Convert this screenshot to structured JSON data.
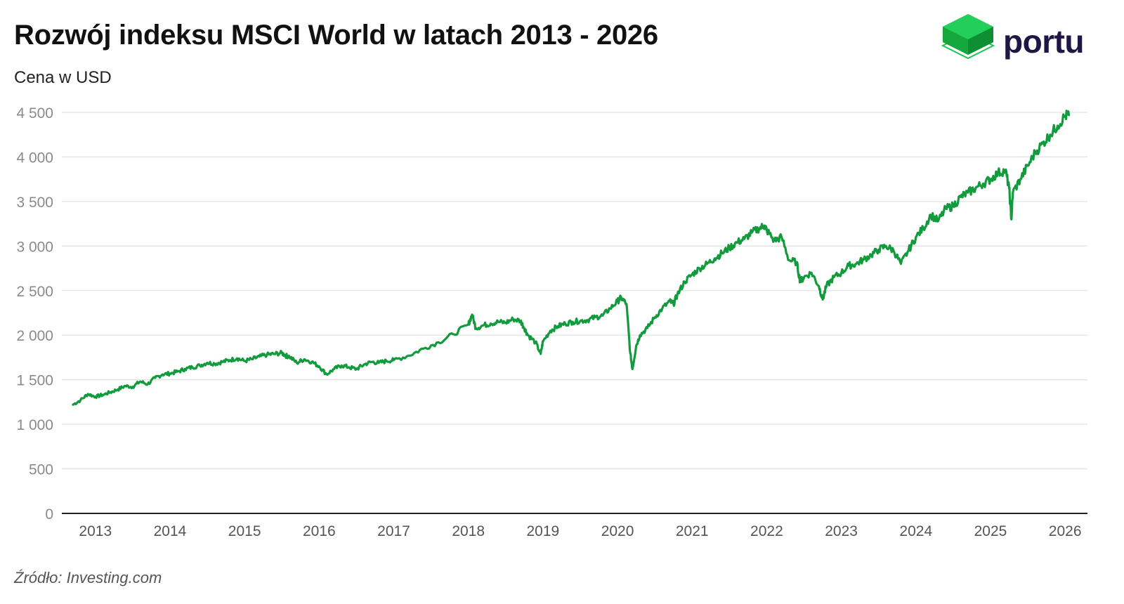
{
  "header": {
    "title": "Rozwój indeksu MSCI World w latach 2013 - 2026",
    "subtitle": "Cena w USD"
  },
  "brand": {
    "name": "portu"
  },
  "footer": {
    "source": "Źródło: Investing.com"
  },
  "colors": {
    "line": "#129b3d",
    "grid": "#e3e3e3",
    "axis": "#222222",
    "logo_green": "#1fc452",
    "logo_dark": "#1f1645"
  },
  "chart_data": {
    "type": "line",
    "title": "Rozwój indeksu MSCI World w latach 2013 - 2026",
    "ylabel": "Cena w USD",
    "xlabel": "",
    "ylim": [
      0,
      4500
    ],
    "xlim": [
      2012.55,
      2026.3
    ],
    "yticks": [
      {
        "value": 0,
        "label": "0"
      },
      {
        "value": 500,
        "label": "500"
      },
      {
        "value": 1000,
        "label": "1 000"
      },
      {
        "value": 1500,
        "label": "1 500"
      },
      {
        "value": 2000,
        "label": "2 000"
      },
      {
        "value": 2500,
        "label": "2 500"
      },
      {
        "value": 3000,
        "label": "3 000"
      },
      {
        "value": 3500,
        "label": "3 500"
      },
      {
        "value": 4000,
        "label": "4 000"
      },
      {
        "value": 4500,
        "label": "4 500"
      }
    ],
    "xticks": [
      {
        "value": 2013,
        "label": "2013"
      },
      {
        "value": 2014,
        "label": "2014"
      },
      {
        "value": 2015,
        "label": "2015"
      },
      {
        "value": 2016,
        "label": "2016"
      },
      {
        "value": 2017,
        "label": "2017"
      },
      {
        "value": 2018,
        "label": "2018"
      },
      {
        "value": 2019,
        "label": "2019"
      },
      {
        "value": 2020,
        "label": "2020"
      },
      {
        "value": 2021,
        "label": "2021"
      },
      {
        "value": 2022,
        "label": "2022"
      },
      {
        "value": 2023,
        "label": "2023"
      },
      {
        "value": 2024,
        "label": "2024"
      },
      {
        "value": 2025,
        "label": "2025"
      },
      {
        "value": 2026,
        "label": "2026"
      }
    ],
    "grid": true,
    "series": [
      {
        "name": "MSCI World",
        "x": [
          2012.7,
          2012.8,
          2012.9,
          2013.0,
          2013.1,
          2013.2,
          2013.3,
          2013.4,
          2013.5,
          2013.6,
          2013.7,
          2013.8,
          2013.9,
          2014.0,
          2014.1,
          2014.2,
          2014.3,
          2014.4,
          2014.5,
          2014.6,
          2014.7,
          2014.8,
          2014.9,
          2015.0,
          2015.1,
          2015.2,
          2015.3,
          2015.4,
          2015.5,
          2015.55,
          2015.6,
          2015.7,
          2015.8,
          2015.9,
          2016.0,
          2016.1,
          2016.2,
          2016.3,
          2016.4,
          2016.5,
          2016.6,
          2016.7,
          2016.8,
          2016.9,
          2017.0,
          2017.2,
          2017.4,
          2017.6,
          2017.8,
          2018.0,
          2018.05,
          2018.1,
          2018.2,
          2018.3,
          2018.4,
          2018.5,
          2018.6,
          2018.7,
          2018.75,
          2018.8,
          2018.9,
          2018.97,
          2019.0,
          2019.1,
          2019.2,
          2019.3,
          2019.4,
          2019.5,
          2019.6,
          2019.7,
          2019.8,
          2019.9,
          2020.0,
          2020.05,
          2020.12,
          2020.17,
          2020.2,
          2020.25,
          2020.3,
          2020.4,
          2020.5,
          2020.6,
          2020.7,
          2020.75,
          2020.8,
          2020.9,
          2021.0,
          2021.1,
          2021.2,
          2021.3,
          2021.4,
          2021.5,
          2021.6,
          2021.7,
          2021.8,
          2021.9,
          2021.97,
          2022.0,
          2022.1,
          2022.2,
          2022.3,
          2022.4,
          2022.45,
          2022.5,
          2022.6,
          2022.7,
          2022.75,
          2022.8,
          2022.9,
          2023.0,
          2023.1,
          2023.2,
          2023.3,
          2023.4,
          2023.5,
          2023.6,
          2023.7,
          2023.8,
          2023.9,
          2024.0,
          2024.1,
          2024.2,
          2024.3,
          2024.4,
          2024.5,
          2024.6,
          2024.7,
          2024.8,
          2024.9,
          2025.0,
          2025.1,
          2025.2,
          2025.25,
          2025.28,
          2025.3,
          2025.4,
          2025.5,
          2025.6,
          2025.7,
          2025.8,
          2025.9,
          2026.0,
          2026.05
        ],
        "values": [
          1220,
          1270,
          1340,
          1310,
          1330,
          1360,
          1390,
          1430,
          1420,
          1480,
          1450,
          1520,
          1560,
          1570,
          1590,
          1620,
          1640,
          1660,
          1690,
          1680,
          1700,
          1720,
          1740,
          1710,
          1730,
          1760,
          1780,
          1790,
          1800,
          1770,
          1760,
          1690,
          1730,
          1700,
          1650,
          1560,
          1620,
          1660,
          1640,
          1620,
          1670,
          1700,
          1690,
          1710,
          1720,
          1770,
          1850,
          1920,
          2010,
          2120,
          2230,
          2080,
          2110,
          2130,
          2150,
          2140,
          2180,
          2160,
          2080,
          2000,
          1920,
          1790,
          1930,
          2050,
          2100,
          2130,
          2150,
          2160,
          2170,
          2200,
          2220,
          2300,
          2380,
          2420,
          2350,
          1800,
          1620,
          1880,
          2000,
          2080,
          2200,
          2300,
          2380,
          2350,
          2450,
          2600,
          2680,
          2750,
          2800,
          2860,
          2920,
          2980,
          3040,
          3080,
          3150,
          3200,
          3230,
          3180,
          3060,
          3100,
          2840,
          2820,
          2600,
          2650,
          2700,
          2550,
          2400,
          2550,
          2650,
          2700,
          2780,
          2800,
          2850,
          2900,
          2960,
          3000,
          2950,
          2800,
          2950,
          3100,
          3200,
          3350,
          3280,
          3420,
          3450,
          3550,
          3600,
          3650,
          3700,
          3750,
          3820,
          3850,
          3650,
          3300,
          3600,
          3750,
          3900,
          4050,
          4150,
          4250,
          4350,
          4460,
          4470
        ]
      }
    ]
  }
}
